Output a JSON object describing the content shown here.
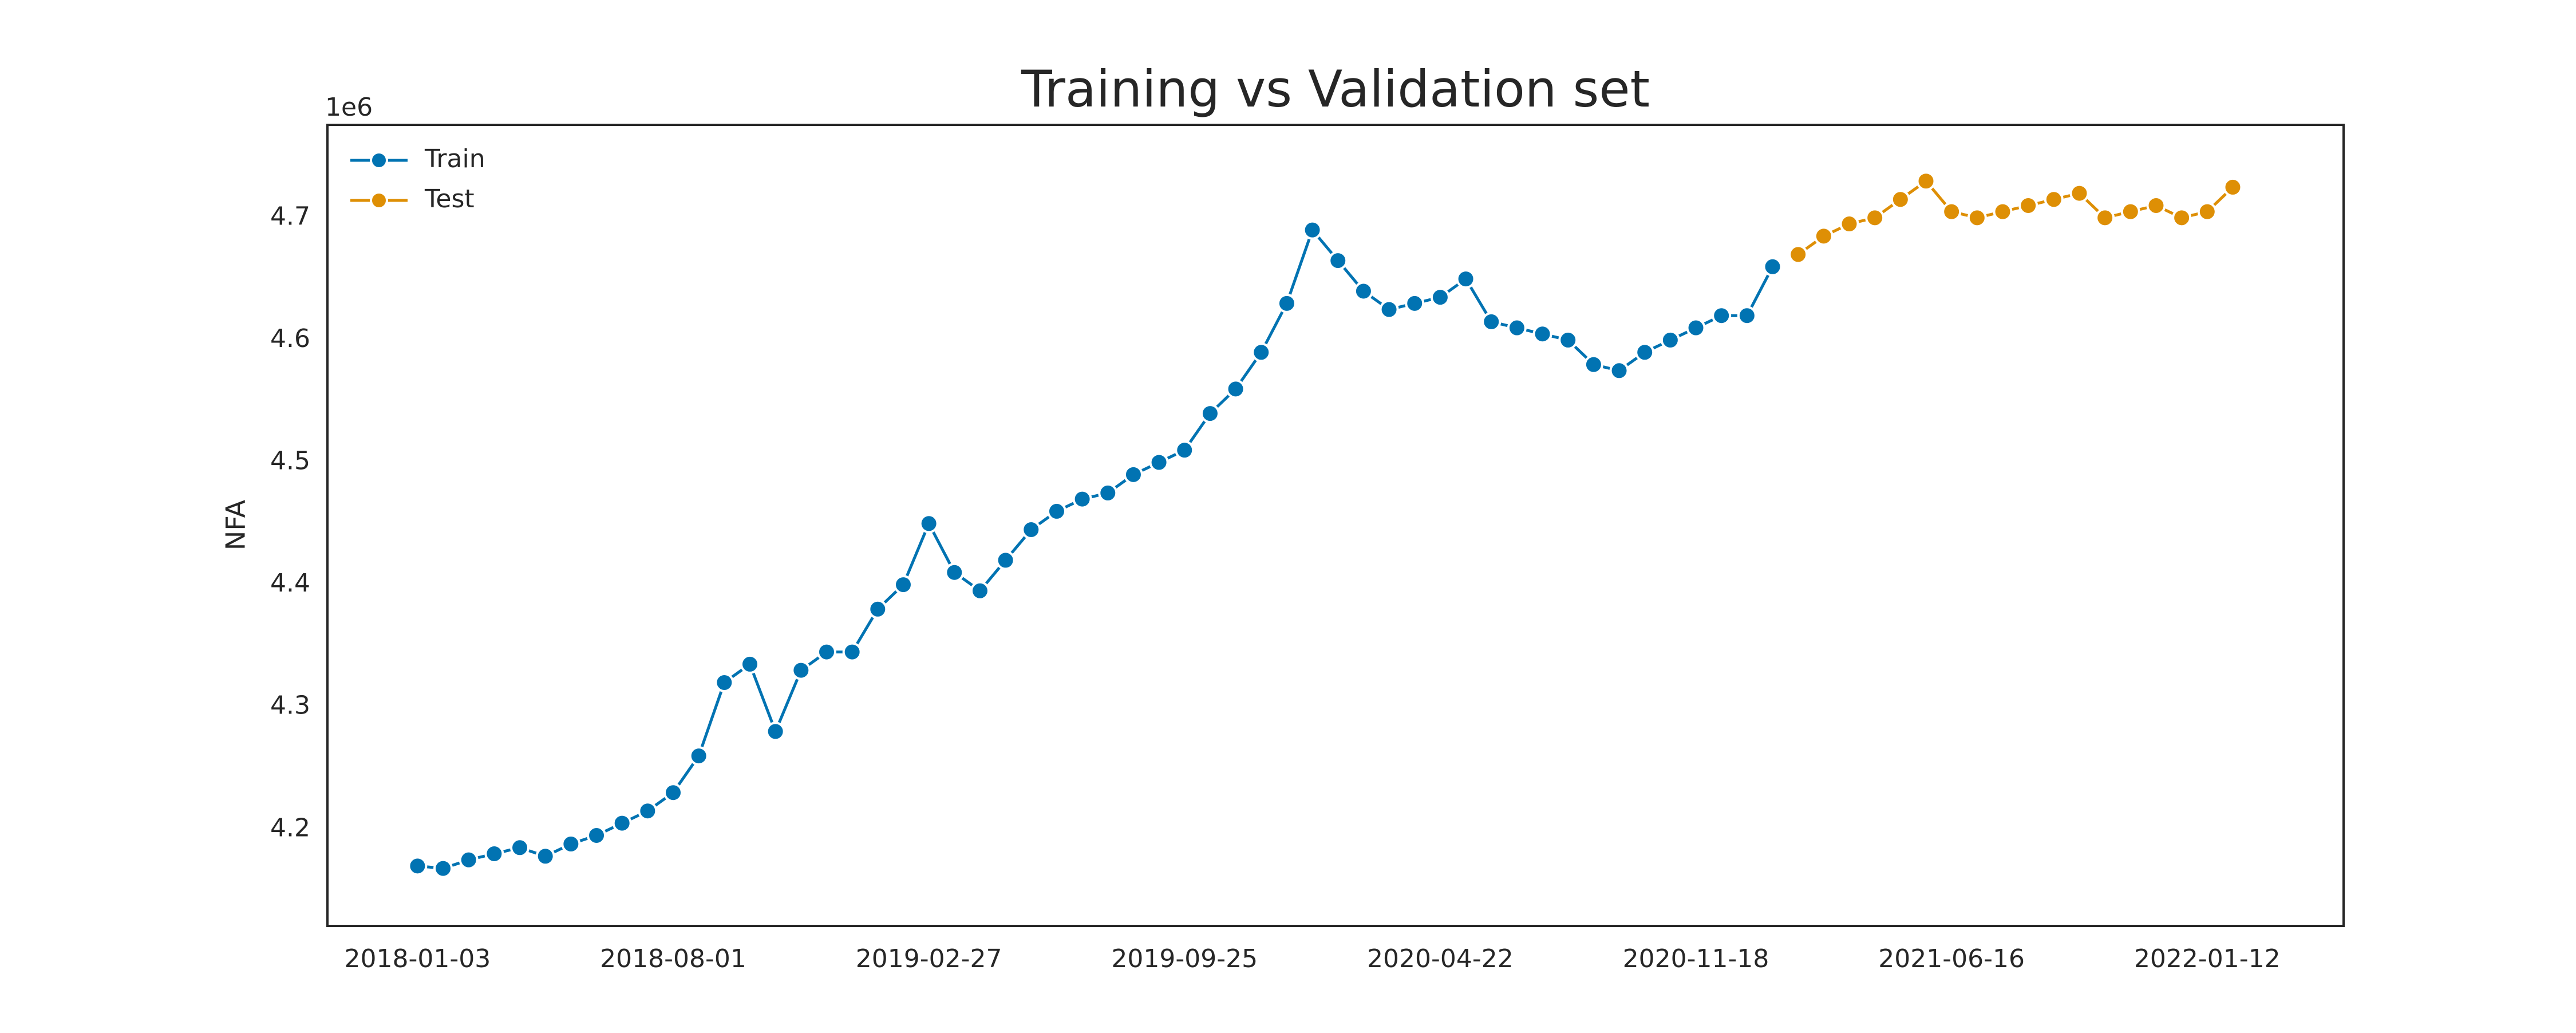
{
  "chart_data": {
    "type": "line",
    "title": "Training vs Validation set",
    "ylabel": "NFA",
    "y_offset_label": "1e6",
    "xlim": [
      "2017-10-21",
      "2022-05-04"
    ],
    "xticks": [
      "2018-01-03",
      "2018-08-01",
      "2019-02-27",
      "2019-09-25",
      "2020-04-22",
      "2020-11-18",
      "2021-06-16",
      "2022-01-12"
    ],
    "ylim": [
      4121000,
      4776000
    ],
    "yticks": [
      {
        "value": 4200000,
        "label": "4.2"
      },
      {
        "value": 4300000,
        "label": "4.3"
      },
      {
        "value": 4400000,
        "label": "4.4"
      },
      {
        "value": 4500000,
        "label": "4.5"
      },
      {
        "value": 4600000,
        "label": "4.6"
      },
      {
        "value": 4700000,
        "label": "4.7"
      }
    ],
    "grid": false,
    "legend": "upper left",
    "series": [
      {
        "name": "Train",
        "color": "#0173b2",
        "x": [
          "2018-01-03",
          "2018-01-24",
          "2018-02-14",
          "2018-03-07",
          "2018-03-28",
          "2018-04-18",
          "2018-05-09",
          "2018-05-30",
          "2018-06-20",
          "2018-07-11",
          "2018-08-01",
          "2018-08-22",
          "2018-09-12",
          "2018-10-03",
          "2018-10-24",
          "2018-11-14",
          "2018-12-05",
          "2018-12-26",
          "2019-01-16",
          "2019-02-06",
          "2019-02-27",
          "2019-03-20",
          "2019-04-10",
          "2019-05-01",
          "2019-05-22",
          "2019-06-12",
          "2019-07-03",
          "2019-07-24",
          "2019-08-14",
          "2019-09-04",
          "2019-09-25",
          "2019-10-16",
          "2019-11-06",
          "2019-11-27",
          "2019-12-18",
          "2020-01-08",
          "2020-01-29",
          "2020-02-19",
          "2020-03-11",
          "2020-04-01",
          "2020-04-22",
          "2020-05-13",
          "2020-06-03",
          "2020-06-24",
          "2020-07-15",
          "2020-08-05",
          "2020-08-26",
          "2020-09-16",
          "2020-10-07",
          "2020-10-28",
          "2020-11-18",
          "2020-12-09",
          "2020-12-30",
          "2021-01-20"
        ],
        "values": [
          4170000,
          4168000,
          4175000,
          4180000,
          4185000,
          4178000,
          4188000,
          4195000,
          4205000,
          4215000,
          4230000,
          4260000,
          4320000,
          4335000,
          4280000,
          4330000,
          4345000,
          4345000,
          4380000,
          4400000,
          4450000,
          4410000,
          4395000,
          4420000,
          4445000,
          4460000,
          4470000,
          4475000,
          4490000,
          4500000,
          4510000,
          4540000,
          4560000,
          4590000,
          4630000,
          4690000,
          4665000,
          4640000,
          4625000,
          4630000,
          4635000,
          4650000,
          4615000,
          4610000,
          4605000,
          4600000,
          4580000,
          4575000,
          4590000,
          4600000,
          4610000,
          4620000,
          4620000,
          4660000
        ]
      },
      {
        "name": "Test",
        "color": "#de8f05",
        "x": [
          "2021-02-10",
          "2021-03-03",
          "2021-03-24",
          "2021-04-14",
          "2021-05-05",
          "2021-05-26",
          "2021-06-16",
          "2021-07-07",
          "2021-07-28",
          "2021-08-18",
          "2021-09-08",
          "2021-09-29",
          "2021-10-20",
          "2021-11-10",
          "2021-12-01",
          "2021-12-22",
          "2022-01-12",
          "2022-02-02"
        ],
        "values": [
          4670000,
          4685000,
          4695000,
          4700000,
          4715000,
          4730000,
          4705000,
          4700000,
          4705000,
          4710000,
          4715000,
          4720000,
          4700000,
          4705000,
          4710000,
          4700000,
          4705000,
          4725000
        ]
      }
    ]
  }
}
